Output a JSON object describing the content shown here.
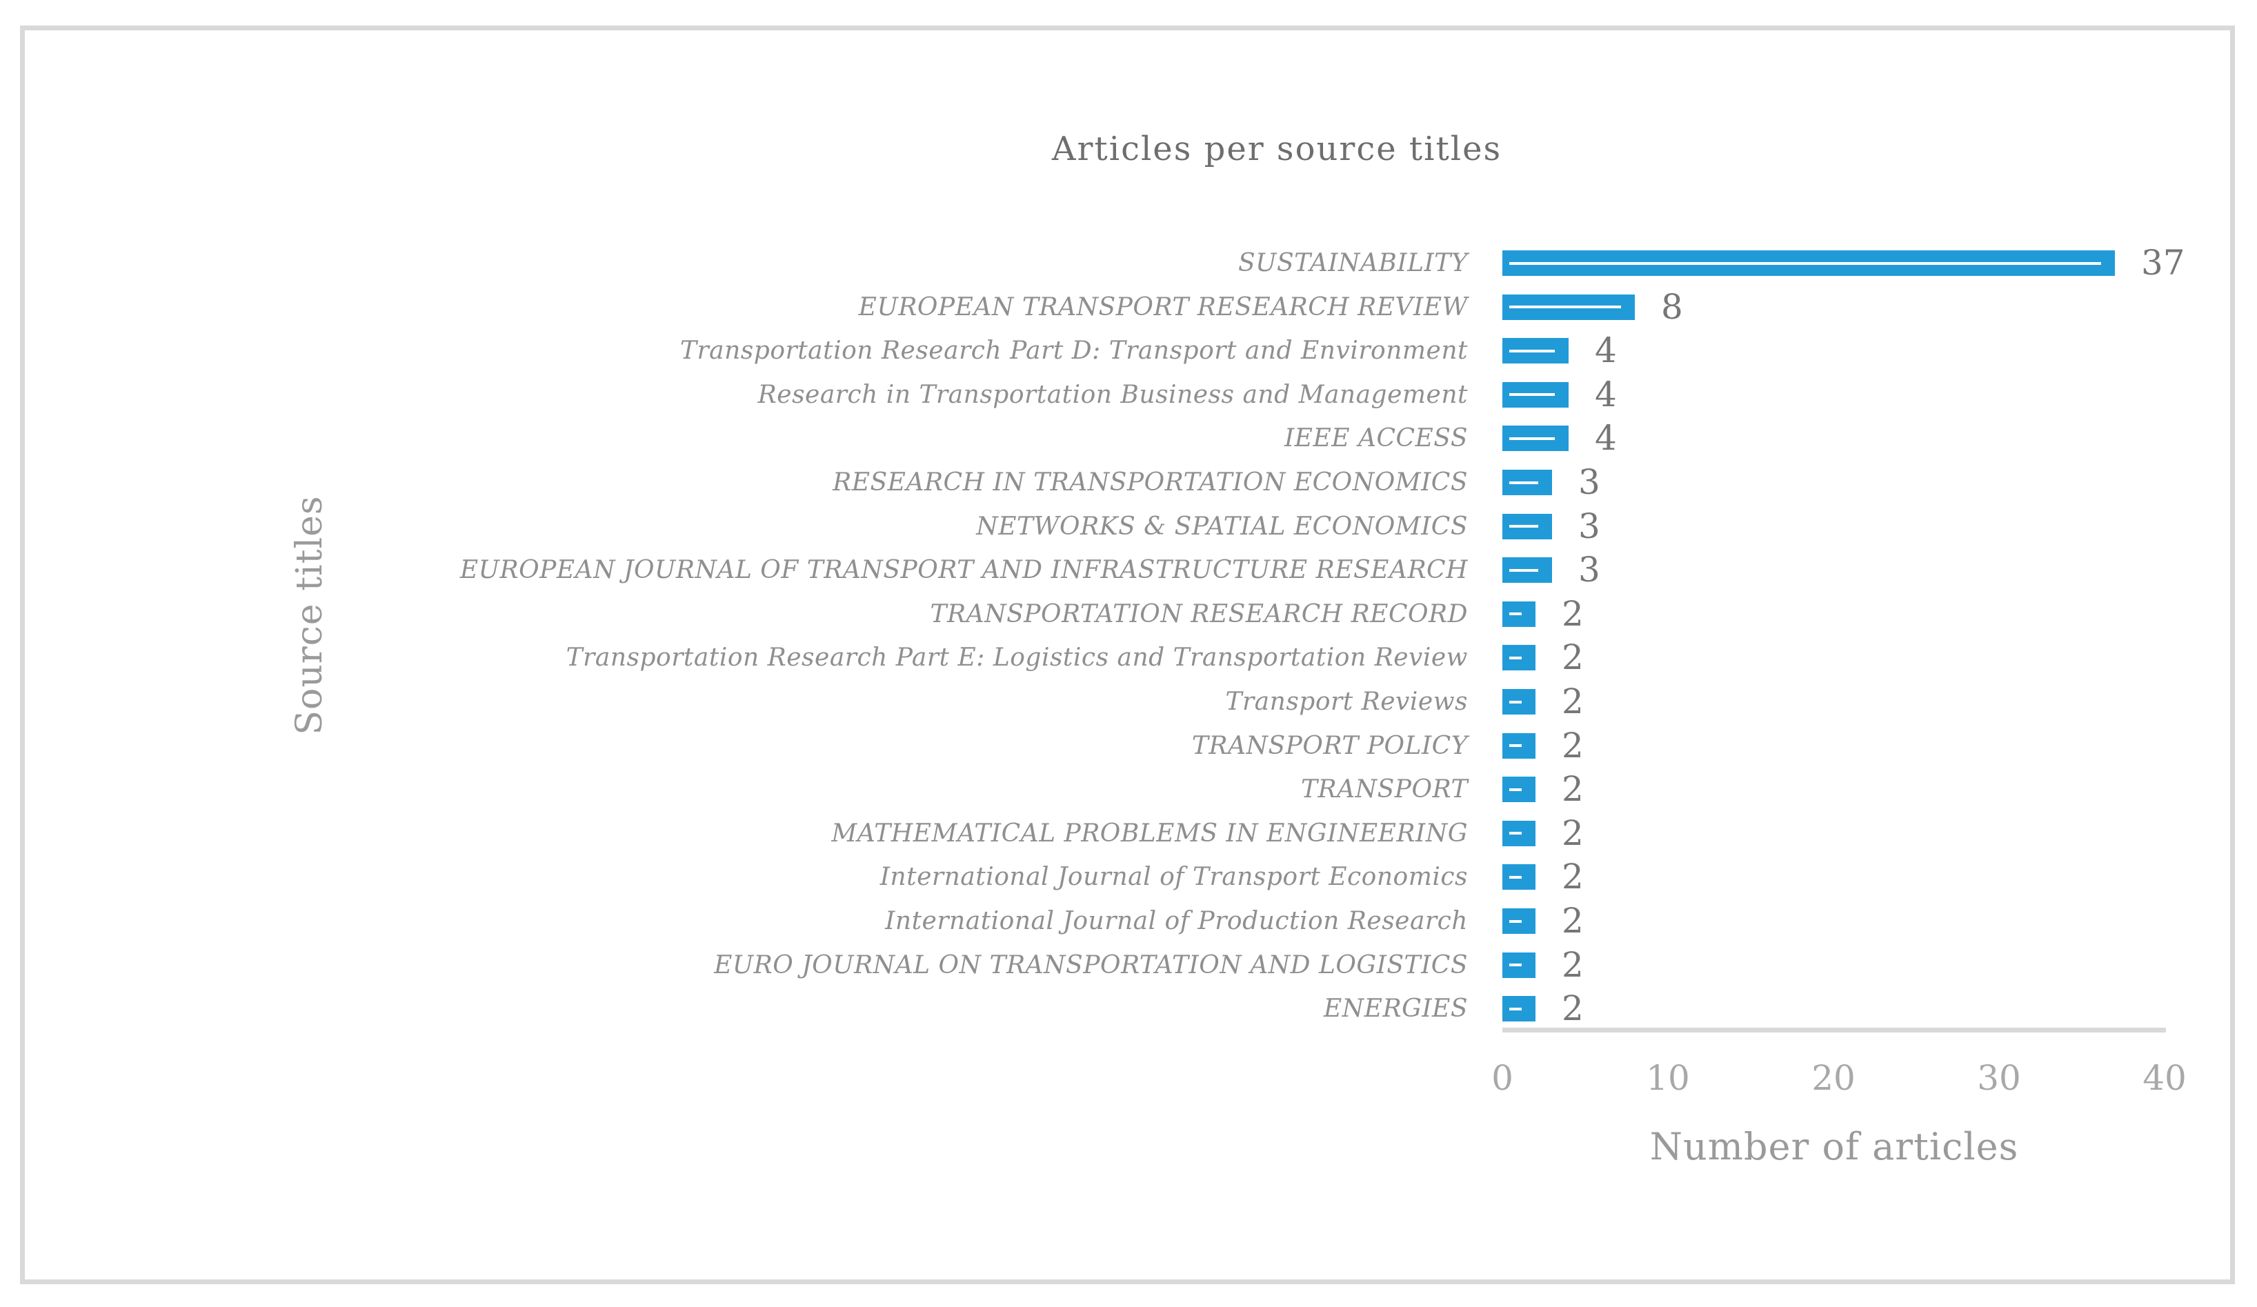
{
  "chart_data": {
    "type": "bar",
    "orientation": "horizontal",
    "title": "Articles per source titles",
    "xlabel": "Number of articles",
    "ylabel": "Source titles",
    "xlim": [
      0,
      40
    ],
    "xticks": [
      "0",
      "10",
      "20",
      "30",
      "40"
    ],
    "grid": "off",
    "legend": "none",
    "categories": [
      "SUSTAINABILITY",
      "EUROPEAN TRANSPORT RESEARCH REVIEW",
      "Transportation Research Part D: Transport and Environment",
      "Research in Transportation Business and Management",
      "IEEE ACCESS",
      "RESEARCH IN TRANSPORTATION ECONOMICS",
      "NETWORKS & SPATIAL ECONOMICS",
      "EUROPEAN JOURNAL OF TRANSPORT AND INFRASTRUCTURE RESEARCH",
      "TRANSPORTATION RESEARCH RECORD",
      "Transportation Research Part E: Logistics and Transportation Review",
      "Transport Reviews",
      "TRANSPORT POLICY",
      "TRANSPORT",
      "MATHEMATICAL PROBLEMS IN ENGINEERING",
      "International Journal of Transport Economics",
      "International Journal of Production Research",
      "EURO JOURNAL ON TRANSPORTATION AND LOGISTICS",
      "ENERGIES"
    ],
    "values": [
      37,
      8,
      4,
      4,
      4,
      3,
      3,
      3,
      2,
      2,
      2,
      2,
      2,
      2,
      2,
      2,
      2,
      2
    ]
  },
  "colors": {
    "bar": "#219bd8",
    "bar_stripe": "#ffffff",
    "axis_line": "#d9d9d9",
    "frame_border": "#d9d9d9",
    "title_text": "#6e6e6e",
    "axis_title_text": "#9a9a9a",
    "tick_text": "#a8a8a8",
    "category_text": "#8f8f8f",
    "value_text": "#767676"
  }
}
